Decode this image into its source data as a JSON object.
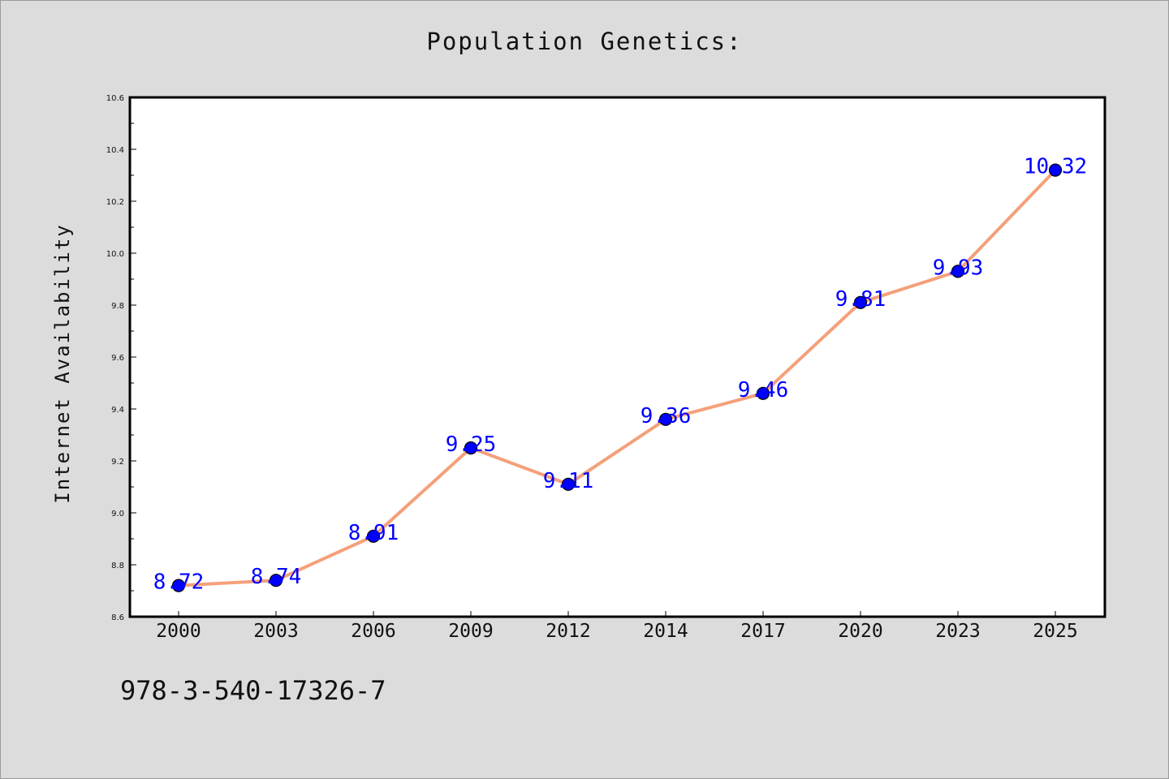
{
  "chart_data": {
    "type": "line",
    "title": "Population Genetics:",
    "xlabel": "",
    "ylabel": "Internet Availability",
    "categories": [
      "2000",
      "2003",
      "2006",
      "2009",
      "2012",
      "2014",
      "2017",
      "2020",
      "2023",
      "2025"
    ],
    "values": [
      8.72,
      8.74,
      8.91,
      9.25,
      9.11,
      9.36,
      9.46,
      9.81,
      9.93,
      10.32
    ],
    "data_labels": [
      "8.72",
      "8.74",
      "8.91",
      "9.25",
      "9.11",
      "9.36",
      "9.46",
      "9.81",
      "9.93",
      "10.32"
    ],
    "ylim": [
      8.6,
      10.6
    ],
    "y_ticks": [
      "8.6",
      "8.8",
      "9.0",
      "9.2",
      "9.4",
      "9.6",
      "9.8",
      "10.0",
      "10.2",
      "10.4",
      "10.6"
    ],
    "grid": false,
    "legend": "none",
    "colors": {
      "line": "#f4a07a",
      "marker": "#0000ff",
      "marker_edge": "#000000",
      "data_label": "#0000ff",
      "background": "#dcdcdc",
      "plot_area": "#ffffff"
    }
  },
  "footnote": "978-3-540-17326-7"
}
